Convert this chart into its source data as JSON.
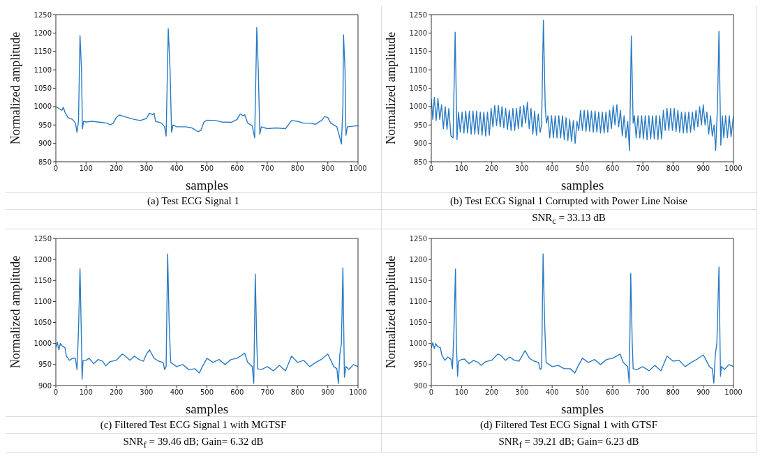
{
  "chart_data": [
    {
      "type": "line",
      "title": "(a) Test ECG Signal 1",
      "xlabel": "samples",
      "ylabel": "Normalized amplitude",
      "color": "#2a7bc4",
      "xlim": [
        0,
        1000
      ],
      "ylim": [
        850,
        1250
      ],
      "xticks": [
        0,
        100,
        200,
        300,
        400,
        500,
        600,
        700,
        800,
        900,
        1000
      ],
      "yticks": [
        850,
        900,
        950,
        1000,
        1050,
        1100,
        1150,
        1200,
        1250
      ],
      "x": [
        0,
        10,
        20,
        25,
        30,
        40,
        55,
        65,
        70,
        75,
        80,
        85,
        88,
        92,
        100,
        120,
        150,
        170,
        180,
        190,
        200,
        210,
        230,
        260,
        280,
        300,
        310,
        320,
        325,
        330,
        350,
        360,
        365,
        372,
        378,
        383,
        388,
        400,
        430,
        450,
        470,
        480,
        490,
        500,
        530,
        550,
        580,
        600,
        610,
        620,
        625,
        635,
        650,
        658,
        665,
        670,
        675,
        680,
        700,
        730,
        760,
        780,
        800,
        820,
        840,
        860,
        880,
        890,
        900,
        910,
        930,
        940,
        945,
        950,
        952,
        957,
        960,
        965,
        1000
      ],
      "values": [
        1000,
        995,
        990,
        998,
        985,
        970,
        965,
        955,
        930,
        960,
        1193,
        1100,
        940,
        960,
        958,
        960,
        957,
        955,
        950,
        955,
        970,
        977,
        972,
        965,
        962,
        968,
        982,
        978,
        982,
        960,
        955,
        945,
        920,
        1212,
        1100,
        930,
        950,
        945,
        945,
        942,
        932,
        935,
        958,
        963,
        962,
        958,
        957,
        965,
        980,
        975,
        978,
        955,
        948,
        915,
        1215,
        1100,
        925,
        945,
        940,
        942,
        940,
        962,
        960,
        955,
        955,
        952,
        963,
        973,
        970,
        955,
        945,
        915,
        898,
        1000,
        1195,
        1100,
        922,
        945,
        948
      ]
    },
    {
      "type": "line",
      "title": "(b) Test ECG Signal 1 Corrupted with Power Line Noise",
      "xlabel": "samples",
      "ylabel": "Normalized amplitude",
      "color": "#2a7bc4",
      "xlim": [
        0,
        1000
      ],
      "ylim": [
        850,
        1250
      ],
      "xticks": [
        0,
        100,
        200,
        300,
        400,
        500,
        600,
        700,
        800,
        900,
        1000
      ],
      "yticks": [
        850,
        900,
        950,
        1000,
        1050,
        1100,
        1150,
        1200,
        1250
      ],
      "annotations": [
        "SNR$_{c}$ = 33.13 dB"
      ],
      "x": [
        0,
        5,
        10,
        16,
        22,
        28,
        34,
        40,
        46,
        52,
        58,
        65,
        72,
        79,
        85,
        90,
        96,
        102,
        108,
        114,
        120,
        126,
        132,
        138,
        144,
        150,
        156,
        162,
        168,
        174,
        180,
        186,
        192,
        198,
        204,
        210,
        216,
        222,
        228,
        234,
        240,
        246,
        252,
        258,
        264,
        270,
        276,
        282,
        288,
        294,
        300,
        306,
        312,
        318,
        324,
        330,
        336,
        342,
        348,
        354,
        360,
        365,
        371,
        377,
        381,
        386,
        392,
        398,
        404,
        410,
        416,
        422,
        428,
        434,
        440,
        446,
        452,
        458,
        464,
        470,
        476,
        482,
        488,
        494,
        500,
        506,
        512,
        518,
        524,
        530,
        536,
        542,
        548,
        554,
        560,
        566,
        572,
        578,
        584,
        590,
        596,
        602,
        608,
        614,
        620,
        626,
        632,
        638,
        644,
        650,
        656,
        662,
        668,
        672,
        678,
        684,
        690,
        696,
        702,
        708,
        714,
        720,
        726,
        732,
        738,
        744,
        750,
        756,
        762,
        768,
        774,
        780,
        786,
        792,
        798,
        804,
        810,
        816,
        822,
        828,
        834,
        840,
        846,
        852,
        858,
        864,
        870,
        876,
        882,
        888,
        894,
        900,
        906,
        912,
        918,
        924,
        930,
        936,
        941,
        947,
        952,
        958,
        963,
        968,
        974,
        980,
        986,
        992,
        1000
      ],
      "values": [
        1020,
        965,
        1025,
        962,
        1022,
        965,
        1005,
        940,
        1000,
        938,
        995,
        920,
        915,
        1202,
        910,
        985,
        930,
        985,
        928,
        988,
        928,
        988,
        925,
        988,
        925,
        988,
        925,
        985,
        922,
        985,
        920,
        985,
        922,
        995,
        945,
        1003,
        948,
        1003,
        945,
        1000,
        942,
        995,
        938,
        990,
        935,
        995,
        935,
        995,
        940,
        1000,
        945,
        1003,
        955,
        1012,
        940,
        995,
        925,
        988,
        922,
        980,
        930,
        950,
        1235,
        1000,
        955,
        975,
        915,
        975,
        915,
        975,
        915,
        975,
        915,
        975,
        910,
        970,
        908,
        965,
        905,
        962,
        900,
        960,
        935,
        990,
        935,
        990,
        933,
        990,
        933,
        988,
        930,
        988,
        930,
        985,
        928,
        985,
        928,
        985,
        930,
        990,
        940,
        1002,
        950,
        1005,
        945,
        990,
        920,
        975,
        915,
        960,
        880,
        1192,
        955,
        975,
        915,
        975,
        915,
        975,
        912,
        975,
        910,
        975,
        912,
        975,
        912,
        975,
        910,
        975,
        912,
        990,
        935,
        995,
        935,
        995,
        935,
        995,
        932,
        990,
        930,
        985,
        928,
        985,
        928,
        985,
        930,
        985,
        935,
        990,
        945,
        1000,
        950,
        1005,
        950,
        985,
        925,
        975,
        920,
        950,
        880,
        1000,
        1205,
        895,
        975,
        915,
        975,
        915,
        975,
        918,
        975
      ]
    },
    {
      "type": "line",
      "title": "(c) Filtered Test ECG Signal 1 with MGTSF",
      "xlabel": "samples",
      "ylabel": "Normalized amplitude",
      "color": "#2a7bc4",
      "xlim": [
        0,
        1000
      ],
      "ylim": [
        900,
        1250
      ],
      "xticks": [
        0,
        100,
        200,
        300,
        400,
        500,
        600,
        700,
        800,
        900,
        1000
      ],
      "yticks": [
        900,
        950,
        1000,
        1050,
        1100,
        1150,
        1200,
        1250
      ],
      "annotations": [
        "SNR$_{f}$ = 39.46 dB; Gain= 6.32 dB"
      ],
      "x": [
        0,
        5,
        10,
        15,
        20,
        30,
        35,
        45,
        55,
        65,
        70,
        75,
        80,
        85,
        87,
        90,
        100,
        110,
        125,
        140,
        155,
        165,
        180,
        200,
        220,
        230,
        245,
        260,
        275,
        290,
        300,
        310,
        325,
        340,
        355,
        360,
        365,
        370,
        375,
        380,
        400,
        420,
        440,
        460,
        475,
        485,
        500,
        520,
        540,
        560,
        580,
        600,
        625,
        635,
        650,
        655,
        660,
        665,
        668,
        680,
        700,
        720,
        740,
        760,
        780,
        800,
        820,
        840,
        860,
        880,
        900,
        910,
        920,
        930,
        935,
        940,
        945,
        950,
        955,
        960,
        970,
        985,
        1000
      ],
      "values": [
        990,
        1003,
        985,
        1000,
        995,
        990,
        970,
        960,
        965,
        965,
        938,
        1030,
        1178,
        1000,
        915,
        960,
        960,
        965,
        952,
        962,
        958,
        947,
        957,
        960,
        975,
        970,
        960,
        970,
        962,
        958,
        975,
        985,
        965,
        958,
        955,
        938,
        945,
        1213,
        1050,
        955,
        945,
        950,
        938,
        940,
        930,
        945,
        965,
        955,
        962,
        950,
        962,
        965,
        977,
        955,
        945,
        905,
        1165,
        1000,
        940,
        938,
        945,
        935,
        948,
        935,
        970,
        955,
        960,
        945,
        955,
        963,
        975,
        960,
        945,
        940,
        905,
        975,
        1000,
        1180,
        920,
        945,
        938,
        950,
        945
      ]
    },
    {
      "type": "line",
      "title": "(d) Filtered Test ECG Signal 1 with GTSF",
      "xlabel": "samples",
      "ylabel": "Normalized amplitude",
      "color": "#2a7bc4",
      "xlim": [
        0,
        1000
      ],
      "ylim": [
        900,
        1250
      ],
      "xticks": [
        0,
        100,
        200,
        300,
        400,
        500,
        600,
        700,
        800,
        900,
        1000
      ],
      "yticks": [
        900,
        950,
        1000,
        1050,
        1100,
        1150,
        1200,
        1250
      ],
      "annotations": [
        "SNR$_{f}$ = 39.21 dB; Gain= 6.23 dB"
      ],
      "x": [
        0,
        5,
        10,
        15,
        20,
        30,
        35,
        45,
        55,
        65,
        70,
        75,
        80,
        83,
        87,
        90,
        100,
        110,
        125,
        140,
        155,
        165,
        180,
        200,
        220,
        230,
        245,
        260,
        275,
        290,
        300,
        310,
        325,
        340,
        355,
        360,
        365,
        370,
        375,
        380,
        400,
        420,
        440,
        460,
        475,
        485,
        500,
        520,
        540,
        560,
        580,
        600,
        625,
        635,
        650,
        655,
        660,
        665,
        668,
        680,
        700,
        720,
        740,
        760,
        780,
        800,
        820,
        840,
        860,
        880,
        900,
        910,
        920,
        930,
        935,
        940,
        945,
        952,
        957,
        960,
        970,
        985,
        1000
      ],
      "values": [
        990,
        1002,
        988,
        1000,
        993,
        990,
        972,
        960,
        968,
        962,
        940,
        1030,
        1177,
        1000,
        922,
        958,
        962,
        963,
        952,
        960,
        955,
        948,
        957,
        960,
        975,
        972,
        960,
        968,
        960,
        958,
        970,
        983,
        965,
        958,
        955,
        938,
        942,
        1213,
        1050,
        955,
        945,
        948,
        940,
        940,
        930,
        945,
        965,
        955,
        962,
        950,
        962,
        965,
        975,
        955,
        945,
        906,
        1167,
        1000,
        940,
        938,
        945,
        935,
        948,
        935,
        970,
        958,
        960,
        945,
        955,
        963,
        973,
        960,
        945,
        940,
        906,
        975,
        1000,
        1182,
        922,
        945,
        938,
        950,
        945
      ]
    }
  ]
}
